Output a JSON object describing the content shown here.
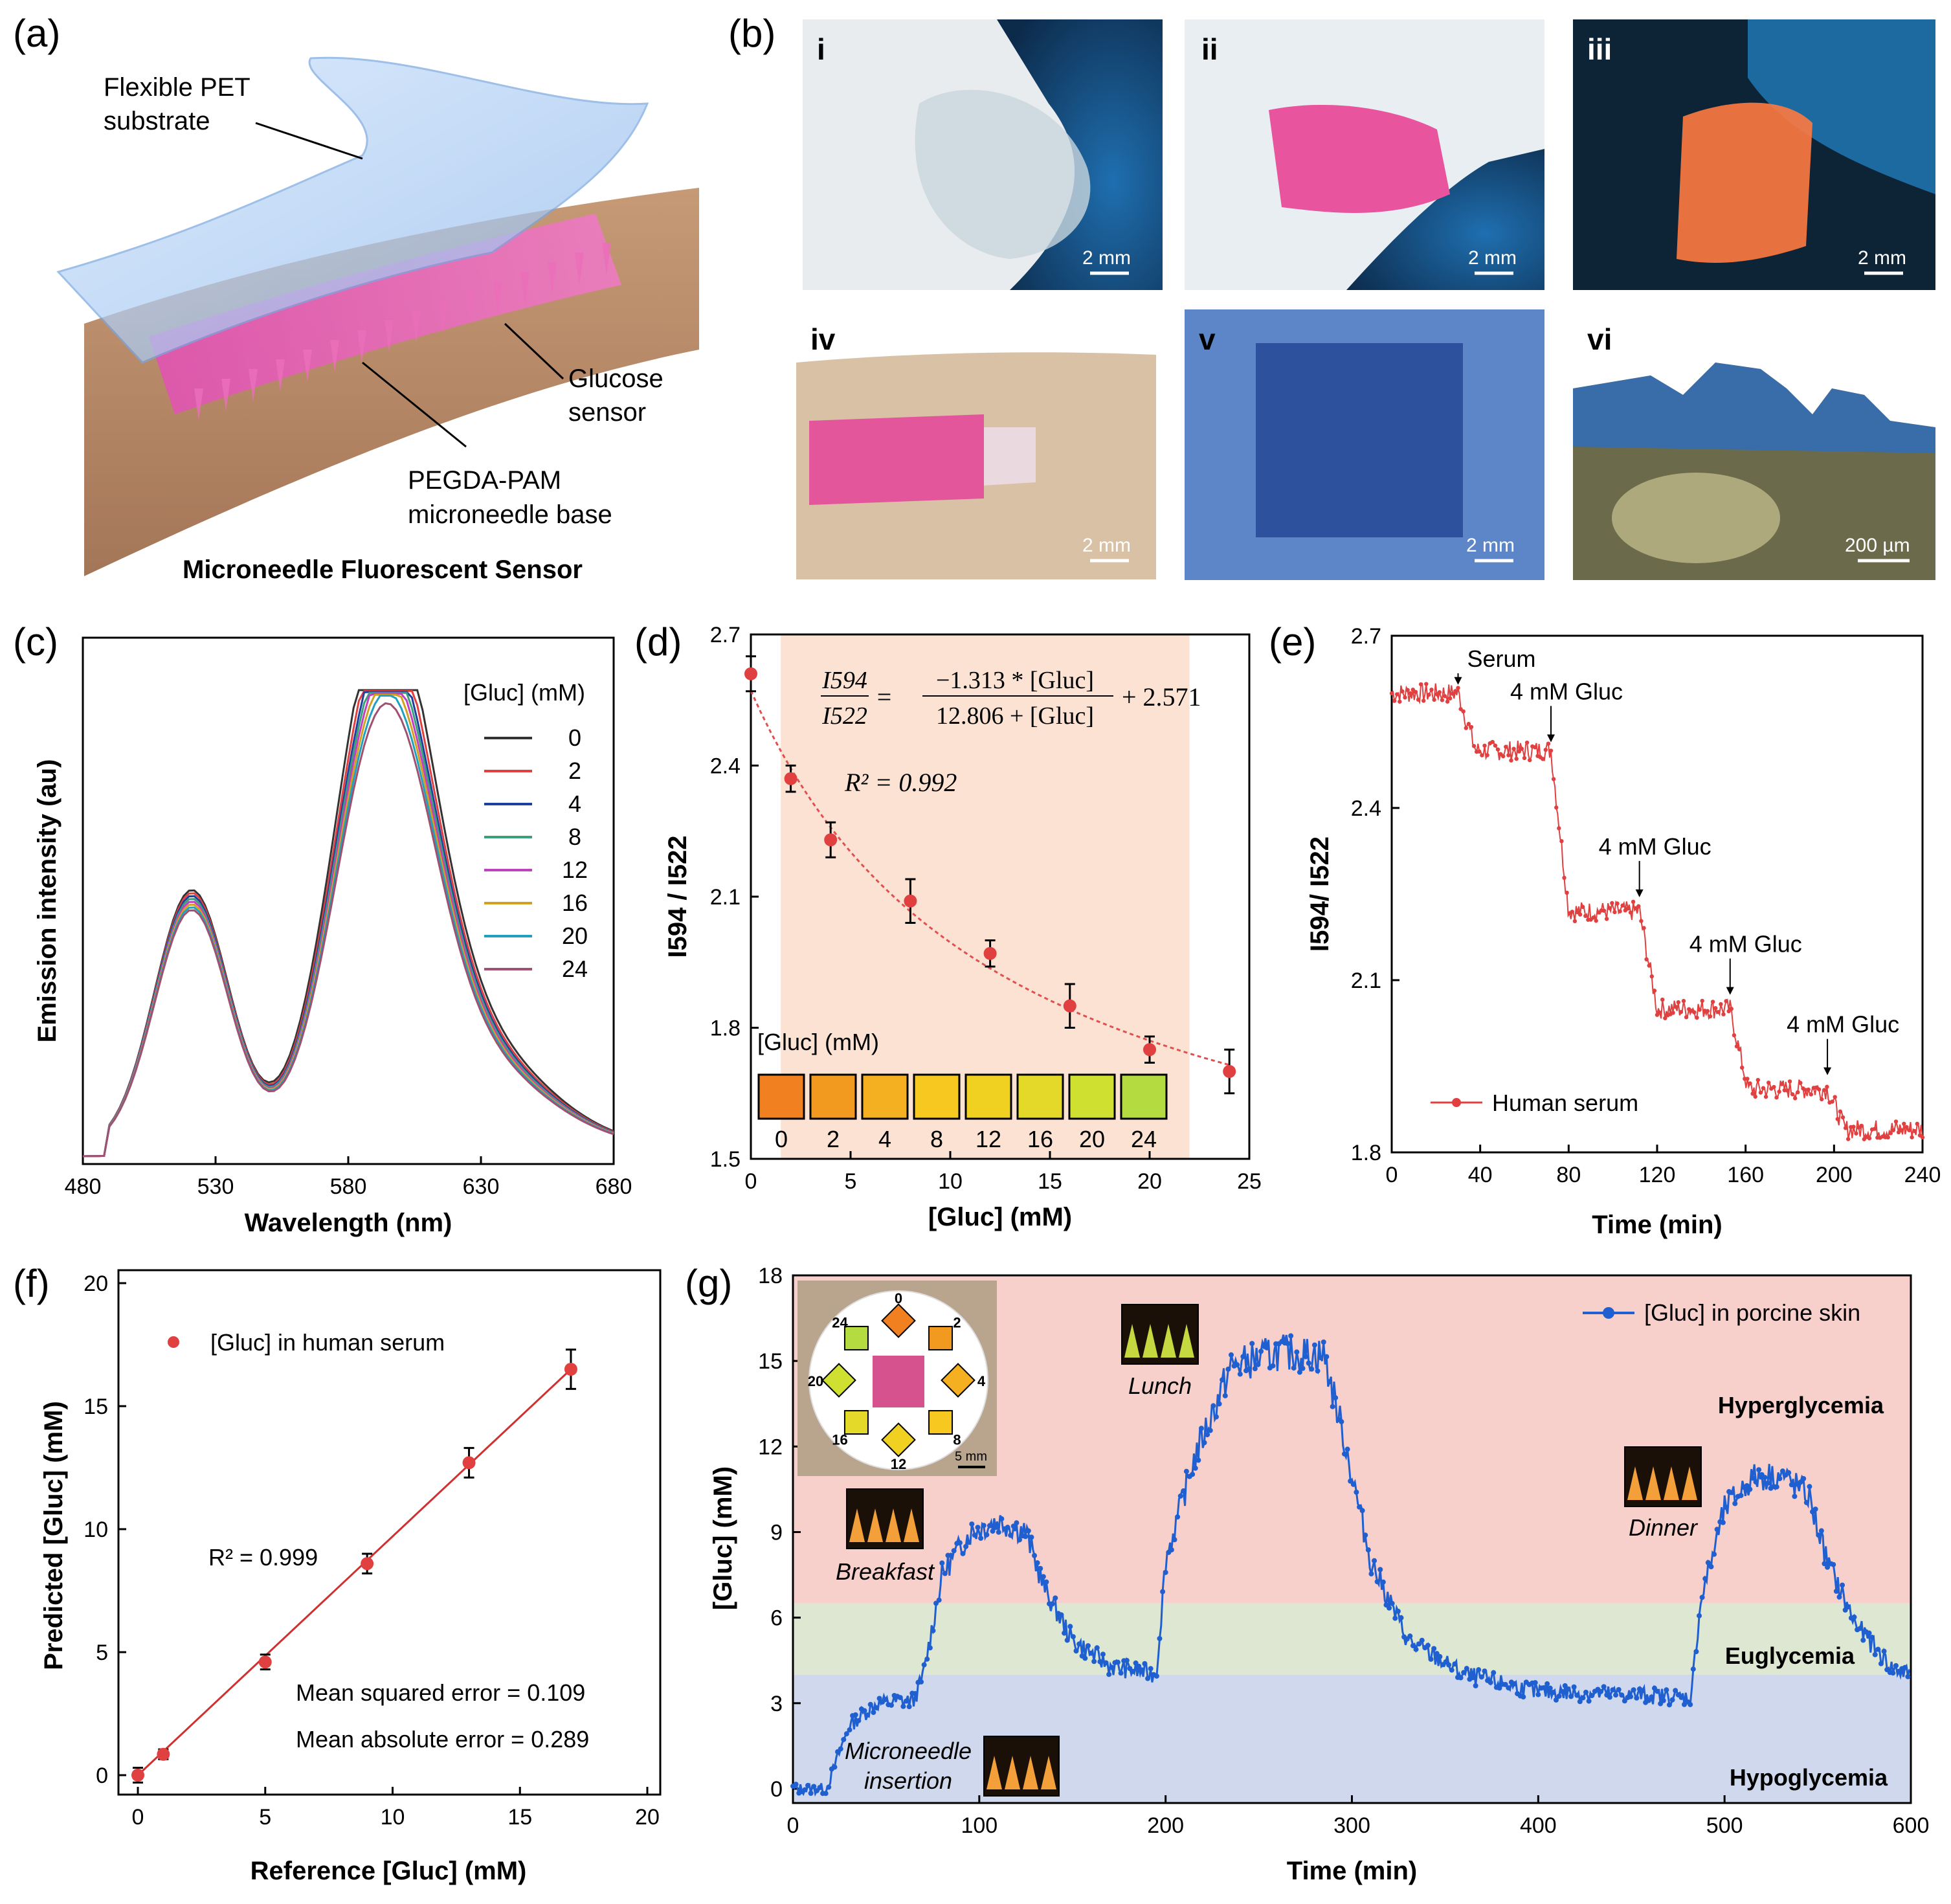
{
  "panels": {
    "a": {
      "letter": "(a)",
      "labels": {
        "pet": [
          "Flexible PET",
          "substrate"
        ],
        "sensor": [
          "Glucose",
          "sensor"
        ],
        "base": [
          "PEGDA-PAM",
          "microneedle base"
        ],
        "title": "Microneedle Fluorescent Sensor"
      }
    },
    "b": {
      "letter": "(b)",
      "photos": [
        {
          "label": "i",
          "scale": "2 mm"
        },
        {
          "label": "ii",
          "scale": "2 mm"
        },
        {
          "label": "iii",
          "scale": "2 mm"
        },
        {
          "label": "iv",
          "scale": "2 mm"
        },
        {
          "label": "v",
          "scale": "2 mm"
        },
        {
          "label": "vi",
          "scale": "200 µm"
        }
      ]
    },
    "c": {
      "letter": "(c)"
    },
    "d": {
      "letter": "(d)"
    },
    "e": {
      "letter": "(e)"
    },
    "f": {
      "letter": "(f)"
    },
    "g": {
      "letter": "(g)"
    }
  },
  "colors": {
    "red_marker": "#e04040",
    "blue_line": "#1f5fd0",
    "hyper": "#f7cfcb",
    "eu": "#dde7d2",
    "hypo": "#cfd8ec",
    "orange_band": "#fbe2d2"
  },
  "chart_data": [
    {
      "id": "c",
      "type": "line",
      "xlabel": "Wavelength (nm)",
      "ylabel": "Emission intensity (au)",
      "xlim": [
        480,
        680
      ],
      "xticks": [
        "480",
        "530",
        "580",
        "630",
        "680"
      ],
      "legend_title": "[Gluc] (mM)",
      "series": [
        {
          "name": "0",
          "color": "#333333",
          "peak1": 0.55,
          "peak2": 1.0
        },
        {
          "name": "2",
          "color": "#e04040",
          "peak1": 0.545,
          "peak2": 0.955
        },
        {
          "name": "4",
          "color": "#1f3f9f",
          "peak1": 0.54,
          "peak2": 0.925
        },
        {
          "name": "8",
          "color": "#3aa07a",
          "peak1": 0.535,
          "peak2": 0.905
        },
        {
          "name": "12",
          "color": "#c040c0",
          "peak1": 0.53,
          "peak2": 0.885
        },
        {
          "name": "16",
          "color": "#d4a020",
          "peak1": 0.525,
          "peak2": 0.865
        },
        {
          "name": "20",
          "color": "#20a0c0",
          "peak1": 0.52,
          "peak2": 0.845
        },
        {
          "name": "24",
          "color": "#a05070",
          "peak1": 0.515,
          "peak2": 0.825
        }
      ]
    },
    {
      "id": "d",
      "type": "scatter",
      "xlabel": "[Gluc] (mM)",
      "ylabel": "I594 / I522",
      "xlim": [
        0,
        25
      ],
      "ylim": [
        1.5,
        2.7
      ],
      "xticks": [
        "0",
        "5",
        "10",
        "15",
        "20",
        "25"
      ],
      "yticks": [
        "1.5",
        "1.8",
        "2.1",
        "2.4",
        "2.7"
      ],
      "x": [
        0,
        2,
        4,
        8,
        12,
        16,
        20,
        24
      ],
      "y": [
        2.61,
        2.37,
        2.23,
        2.09,
        1.97,
        1.85,
        1.75,
        1.7
      ],
      "err": [
        0.04,
        0.03,
        0.04,
        0.05,
        0.03,
        0.05,
        0.03,
        0.05
      ],
      "fit": {
        "a": -1.313,
        "b": 12.806,
        "c": 2.571
      },
      "equation": {
        "lhs_num": "I594",
        "lhs_den": "I522",
        "rhs_num": "−1.313 * [Gluc]",
        "rhs_den": "12.806 + [Gluc]",
        "rhs_tail": "+ 2.571",
        "r2": "R² = 0.992"
      },
      "highlight_range": [
        1.5,
        22
      ],
      "swatch_title": "[Gluc] (mM)",
      "swatches": [
        {
          "label": "0",
          "color": "#f08020"
        },
        {
          "label": "2",
          "color": "#f29a20"
        },
        {
          "label": "4",
          "color": "#f4b020"
        },
        {
          "label": "8",
          "color": "#f6c820"
        },
        {
          "label": "12",
          "color": "#f0d020"
        },
        {
          "label": "16",
          "color": "#e4d828"
        },
        {
          "label": "20",
          "color": "#cfe030"
        },
        {
          "label": "24",
          "color": "#b4dc40"
        }
      ]
    },
    {
      "id": "e",
      "type": "line",
      "xlabel": "Time (min)",
      "ylabel": "I594/ I522",
      "xlim": [
        0,
        240
      ],
      "ylim": [
        1.8,
        2.7
      ],
      "xticks": [
        "0",
        "40",
        "80",
        "120",
        "160",
        "200",
        "240"
      ],
      "yticks": [
        "1.8",
        "2.1",
        "2.4",
        "2.7"
      ],
      "legend": "Human serum",
      "levels": [
        {
          "from": 0,
          "to": 30,
          "y": 2.6
        },
        {
          "from": 30,
          "to": 72,
          "y": 2.5
        },
        {
          "from": 72,
          "to": 112,
          "y": 2.22
        },
        {
          "from": 112,
          "to": 153,
          "y": 2.05
        },
        {
          "from": 153,
          "to": 197,
          "y": 1.91
        },
        {
          "from": 197,
          "to": 240,
          "y": 1.84
        }
      ],
      "annotations": [
        {
          "text": "Serum",
          "x": 30,
          "y": 2.61
        },
        {
          "text": "4 mM Gluc",
          "x": 72,
          "y": 2.51
        },
        {
          "text": "4 mM Gluc",
          "x": 112,
          "y": 2.24
        },
        {
          "text": "4 mM Gluc",
          "x": 153,
          "y": 2.07
        },
        {
          "text": "4 mM Gluc",
          "x": 197,
          "y": 1.93
        }
      ]
    },
    {
      "id": "f",
      "type": "scatter",
      "xlabel": "Reference [Gluc] (mM)",
      "ylabel": "Predicted [Gluc] (mM)",
      "xlim": [
        0,
        20
      ],
      "ylim": [
        0,
        20
      ],
      "xticks": [
        "0",
        "5",
        "10",
        "15",
        "20"
      ],
      "yticks": [
        "0",
        "5",
        "10",
        "15",
        "20"
      ],
      "x": [
        0,
        1,
        5,
        9,
        13,
        17
      ],
      "y": [
        0.0,
        0.85,
        4.6,
        8.6,
        12.7,
        16.5
      ],
      "err": [
        0.3,
        0.2,
        0.3,
        0.4,
        0.6,
        0.8
      ],
      "legend": "[Gluc] in human serum",
      "r2": "R² = 0.999",
      "mse": "Mean squared error = 0.109",
      "mae": "Mean absolute error = 0.289"
    },
    {
      "id": "g",
      "type": "line",
      "xlabel": "Time (min)",
      "ylabel": "[Gluc] (mM)",
      "xlim": [
        0,
        600
      ],
      "ylim": [
        0,
        18
      ],
      "xticks": [
        "0",
        "100",
        "200",
        "300",
        "400",
        "500",
        "600"
      ],
      "yticks": [
        "0",
        "3",
        "6",
        "9",
        "12",
        "15",
        "18"
      ],
      "legend": "[Gluc] in porcine skin",
      "zones": [
        {
          "name": "Hyperglycemia",
          "from": 6.5,
          "to": 18
        },
        {
          "name": "Euglycemia",
          "from": 4.0,
          "to": 6.5
        },
        {
          "name": "Hypoglycemia",
          "from": -0.5,
          "to": 4.0
        }
      ],
      "profile": [
        [
          0,
          0
        ],
        [
          18,
          0
        ],
        [
          30,
          2.2
        ],
        [
          45,
          3.0
        ],
        [
          65,
          3.1
        ],
        [
          70,
          4.0
        ],
        [
          80,
          7.5
        ],
        [
          95,
          9.0
        ],
        [
          110,
          9.4
        ],
        [
          125,
          9.0
        ],
        [
          135,
          7.0
        ],
        [
          150,
          5.2
        ],
        [
          170,
          4.3
        ],
        [
          195,
          4.0
        ],
        [
          200,
          8.0
        ],
        [
          215,
          11.5
        ],
        [
          235,
          14.8
        ],
        [
          260,
          15.3
        ],
        [
          285,
          15.2
        ],
        [
          295,
          12.5
        ],
        [
          310,
          8.0
        ],
        [
          330,
          5.2
        ],
        [
          360,
          4.0
        ],
        [
          400,
          3.4
        ],
        [
          450,
          3.3
        ],
        [
          482,
          3.2
        ],
        [
          487,
          6.5
        ],
        [
          500,
          9.8
        ],
        [
          515,
          10.9
        ],
        [
          530,
          11.0
        ],
        [
          545,
          10.3
        ],
        [
          555,
          8.0
        ],
        [
          570,
          5.8
        ],
        [
          590,
          4.2
        ],
        [
          600,
          4.0
        ]
      ],
      "meal_labels": [
        {
          "text": "Breakfast",
          "x": 90,
          "y": 7.6
        },
        {
          "text": "Lunch",
          "x": 197,
          "y": 13.6
        },
        {
          "text": "Dinner",
          "x": 466,
          "y": 8.8
        }
      ],
      "insertion_label": [
        "Microneedle",
        "insertion"
      ],
      "inset": {
        "ring_labels": [
          "0",
          "4",
          "8",
          "12",
          "16",
          "20",
          "24",
          "2"
        ],
        "scale": "5 mm"
      }
    }
  ]
}
